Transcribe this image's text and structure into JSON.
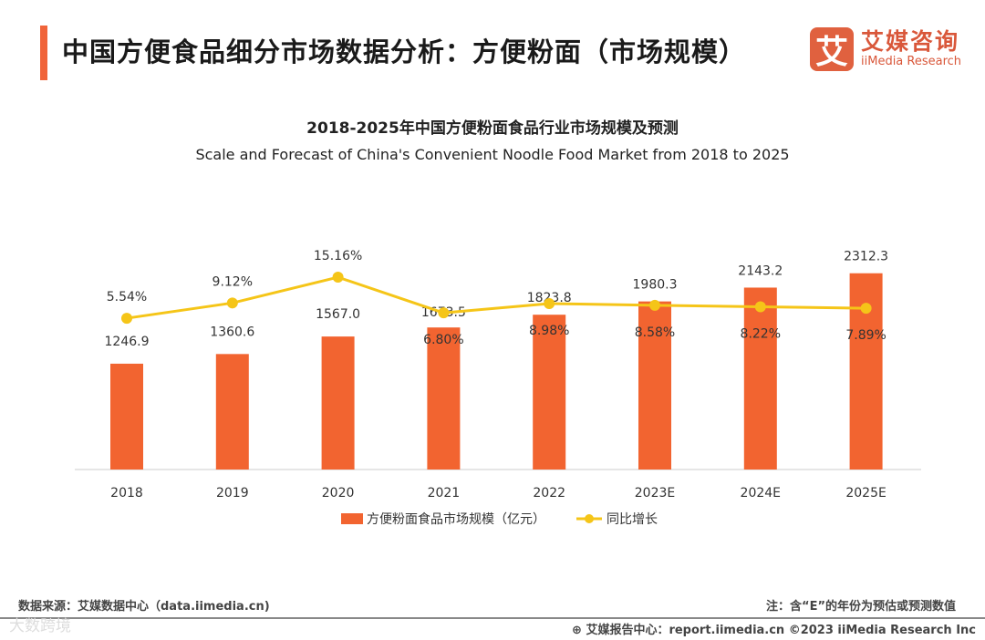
{
  "header": {
    "title": "中国方便食品细分市场数据分析：方便粉面（市场规模）",
    "logo_mark": "艾",
    "logo_cn": "艾媒咨询",
    "logo_en": "iiMedia Research"
  },
  "chart_data": {
    "type": "bar+line",
    "title": "2018-2025年中国方便粉面食品行业市场规模及预测",
    "subtitle": "Scale and Forecast of China's Convenient Noodle Food Market from 2018 to 2025",
    "categories": [
      "2018",
      "2019",
      "2020",
      "2021",
      "2022",
      "2023E",
      "2024E",
      "2025E"
    ],
    "series": [
      {
        "name": "方便粉面食品市场规模（亿元）",
        "type": "bar",
        "color": "#f26430",
        "values": [
          1246.9,
          1360.6,
          1567.0,
          1673.5,
          1823.8,
          1980.3,
          2143.2,
          2312.3
        ],
        "labels": [
          "1246.9",
          "1360.6",
          "1567.0",
          "1673.5",
          "1823.8",
          "1980.3",
          "2143.2",
          "2312.3"
        ]
      },
      {
        "name": "同比增长",
        "type": "line",
        "color": "#f5c518",
        "values": [
          5.54,
          9.12,
          15.16,
          6.8,
          8.98,
          8.58,
          8.22,
          7.89
        ],
        "labels": [
          "5.54%",
          "9.12%",
          "15.16%",
          "6.80%",
          "8.98%",
          "8.58%",
          "8.22%",
          "7.89%"
        ]
      }
    ],
    "legend": "bottom",
    "grid": false
  },
  "footer": {
    "source": "数据来源：艾媒数据中心（data.iimedia.cn)",
    "note": "注：含“E”的年份为预估或预测数值",
    "report": "艾媒报告中心：report.iimedia.cn   ©2023  iiMedia Research  Inc",
    "watermark": "大数跨境"
  }
}
